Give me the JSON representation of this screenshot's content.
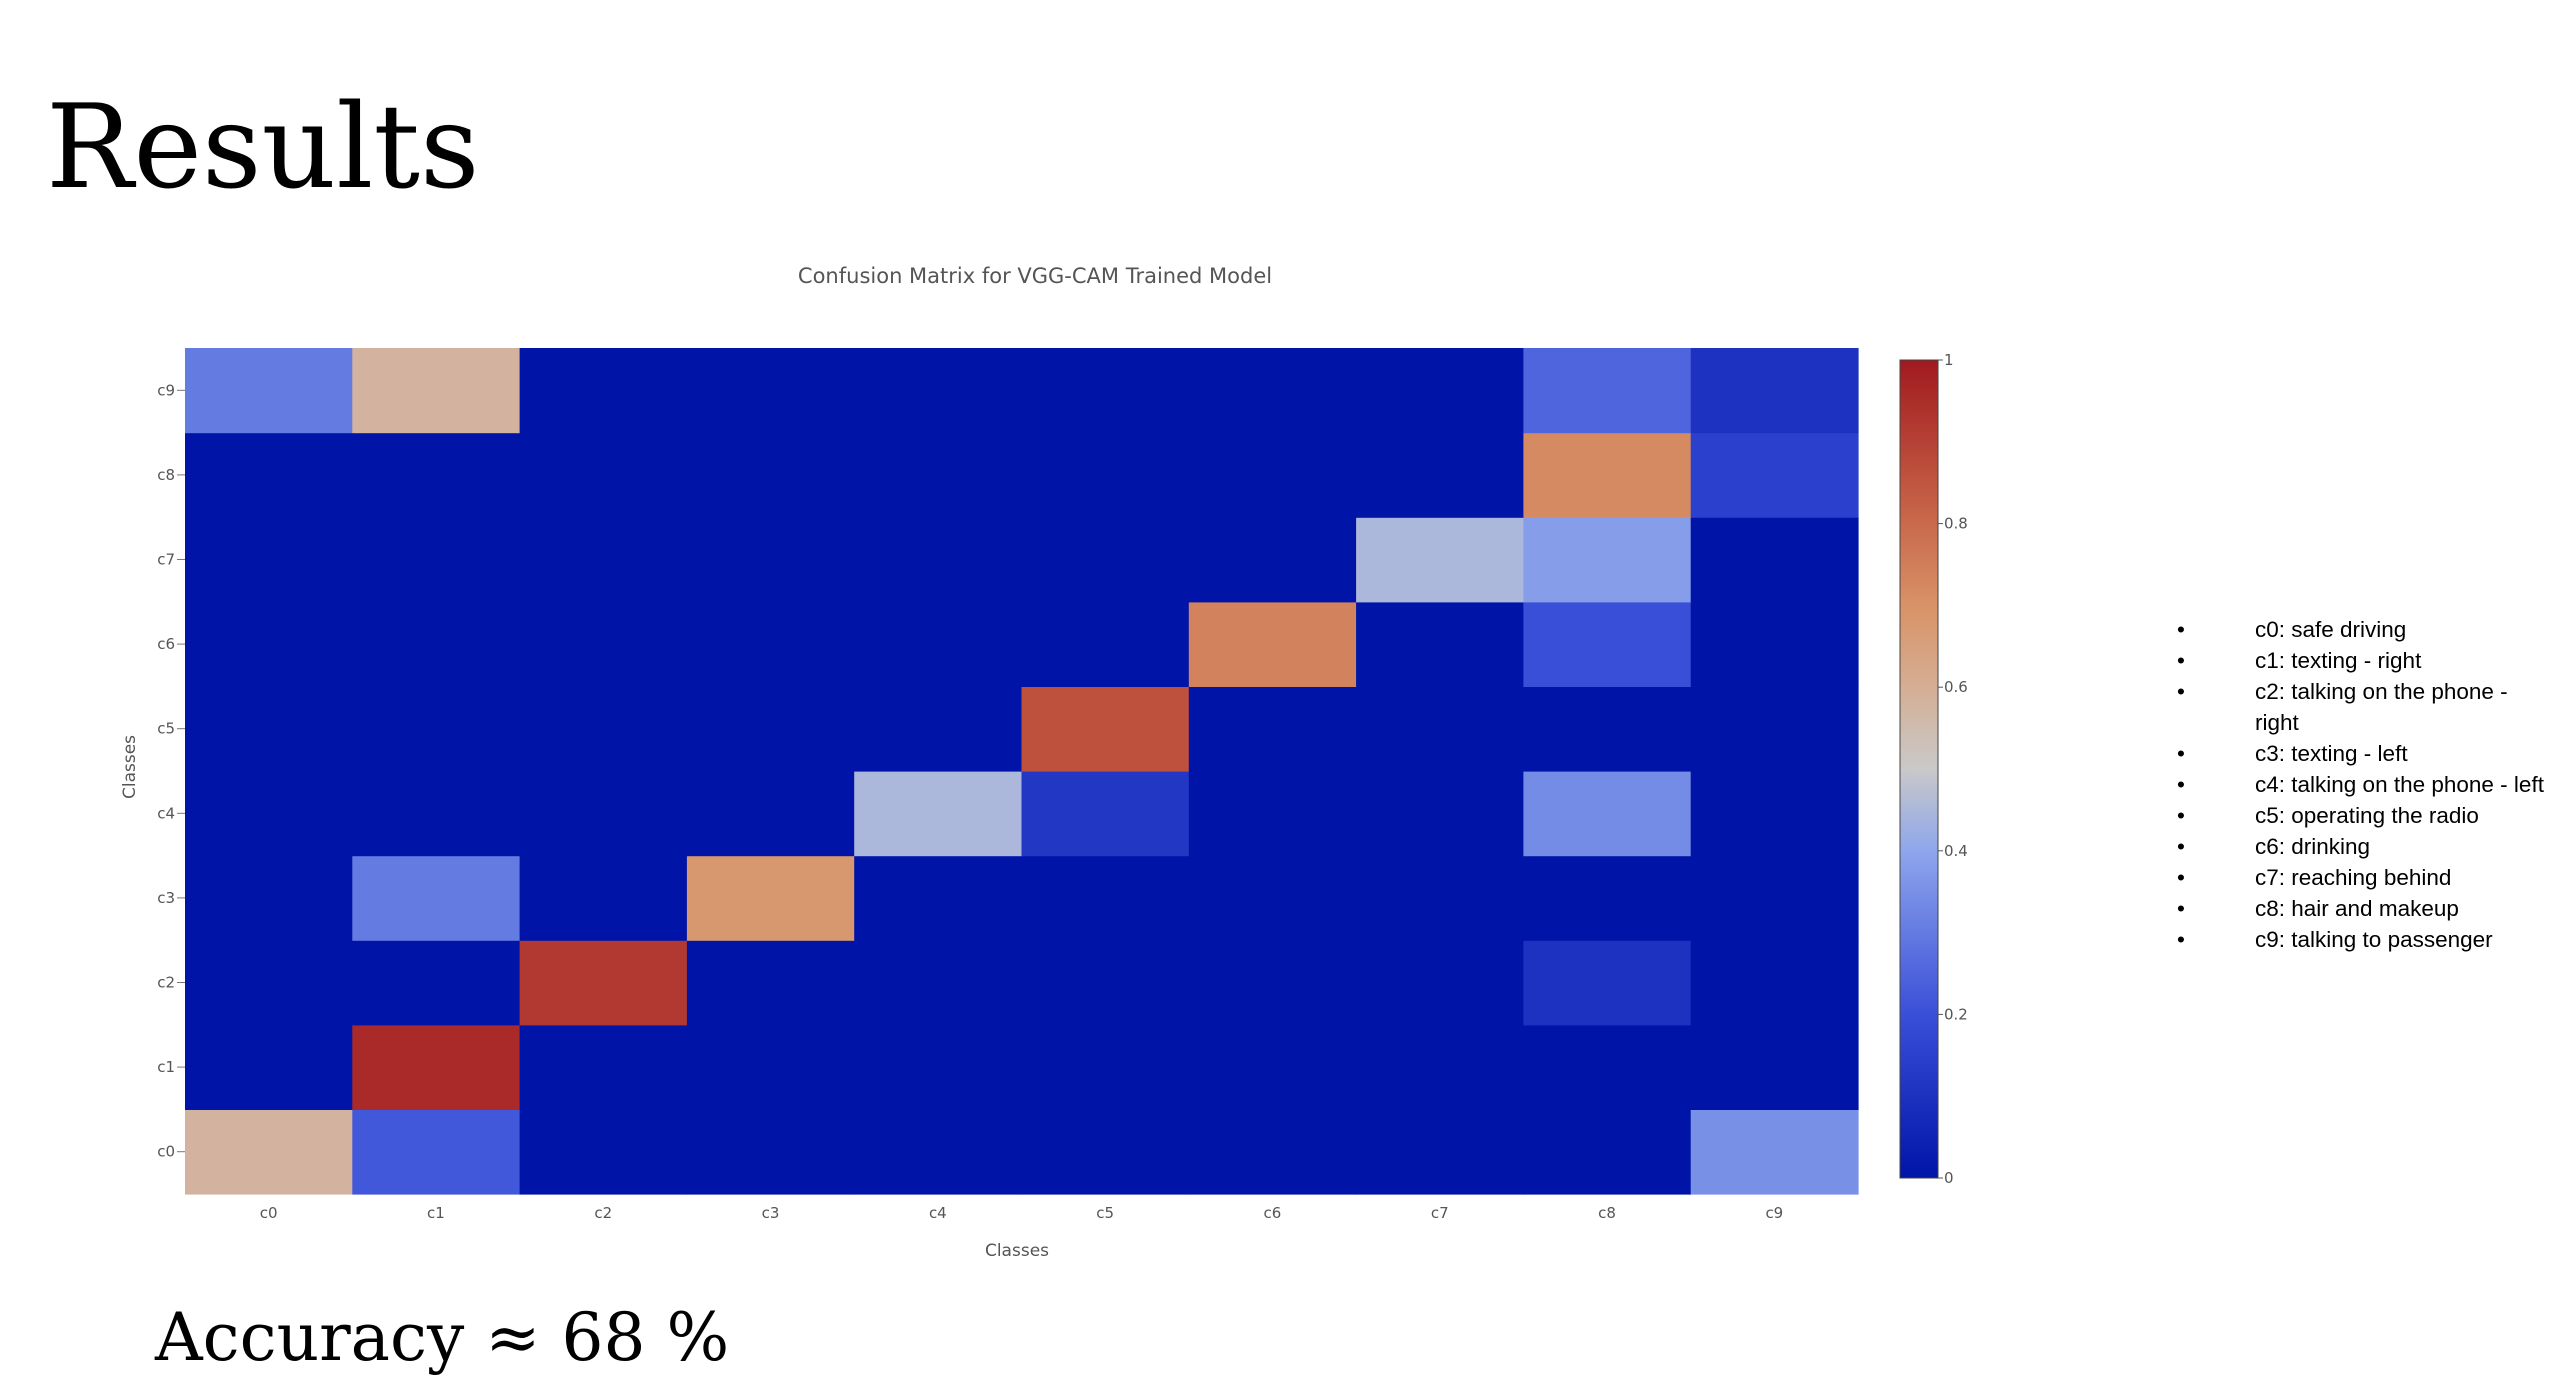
{
  "slide": {
    "title": "Results",
    "accuracy_text": "Accuracy ≈ 68 %"
  },
  "class_legend": [
    "c0: safe driving",
    "c1: texting - right",
    "c2: talking on the phone - right",
    "c3: texting - left",
    "c4: talking on the phone - left",
    "c5: operating the radio",
    "c6: drinking",
    "c7: reaching behind",
    "c8: hair and makeup",
    "c9: talking to passenger"
  ],
  "bullet_glyph": "•",
  "chart_data": {
    "type": "heatmap",
    "title": "Confusion Matrix for VGG-CAM Trained Model",
    "xlabel": "Classes",
    "ylabel": "Classes",
    "x_categories": [
      "c0",
      "c1",
      "c2",
      "c3",
      "c4",
      "c5",
      "c6",
      "c7",
      "c8",
      "c9"
    ],
    "y_categories": [
      "c0",
      "c1",
      "c2",
      "c3",
      "c4",
      "c5",
      "c6",
      "c7",
      "c8",
      "c9"
    ],
    "y_order": "c0 at bottom, c9 at top",
    "z": [
      [
        0.58,
        0.22,
        0.0,
        0.0,
        0.0,
        0.0,
        0.0,
        0.0,
        0.0,
        0.35
      ],
      [
        0.0,
        0.96,
        0.0,
        0.0,
        0.0,
        0.0,
        0.0,
        0.0,
        0.0,
        0.0
      ],
      [
        0.0,
        0.0,
        0.92,
        0.0,
        0.0,
        0.0,
        0.0,
        0.0,
        0.1,
        0.0
      ],
      [
        0.0,
        0.3,
        0.0,
        0.68,
        0.0,
        0.0,
        0.0,
        0.0,
        0.0,
        0.0
      ],
      [
        0.0,
        0.0,
        0.0,
        0.0,
        0.45,
        0.12,
        0.0,
        0.0,
        0.34,
        0.0
      ],
      [
        0.0,
        0.0,
        0.0,
        0.0,
        0.0,
        0.86,
        0.0,
        0.0,
        0.0,
        0.0
      ],
      [
        0.0,
        0.0,
        0.0,
        0.0,
        0.0,
        0.0,
        0.74,
        0.0,
        0.2,
        0.0
      ],
      [
        0.0,
        0.0,
        0.0,
        0.0,
        0.0,
        0.0,
        0.0,
        0.45,
        0.38,
        0.0
      ],
      [
        0.0,
        0.0,
        0.0,
        0.0,
        0.0,
        0.0,
        0.0,
        0.0,
        0.72,
        0.15
      ],
      [
        0.3,
        0.58,
        0.0,
        0.0,
        0.0,
        0.0,
        0.0,
        0.0,
        0.25,
        0.1
      ]
    ],
    "colorscale": {
      "range": [
        0,
        1
      ],
      "ticks": [
        "0",
        "0.2",
        "0.4",
        "0.6",
        "0.8",
        "1"
      ],
      "stops": [
        {
          "v": 0.0,
          "color": "#0014a8"
        },
        {
          "v": 0.2,
          "color": "#3a4fd8"
        },
        {
          "v": 0.4,
          "color": "#8ea6ec"
        },
        {
          "v": 0.5,
          "color": "#c9c9c9"
        },
        {
          "v": 0.6,
          "color": "#d5ae94"
        },
        {
          "v": 0.7,
          "color": "#d99266"
        },
        {
          "v": 0.85,
          "color": "#c05540"
        },
        {
          "v": 1.0,
          "color": "#a01a1f"
        }
      ]
    },
    "grid": false
  }
}
